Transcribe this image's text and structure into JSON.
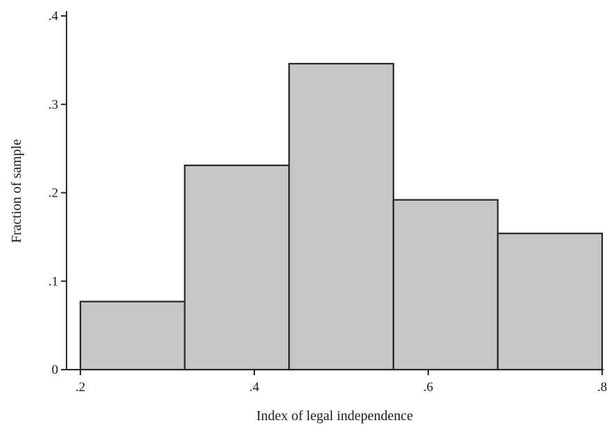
{
  "chart_data": {
    "type": "bar",
    "title": "",
    "xlabel": "Index of legal independence",
    "ylabel": "Fraction of sample",
    "bins": [
      {
        "start": 0.2,
        "end": 0.32,
        "value": 0.077
      },
      {
        "start": 0.32,
        "end": 0.44,
        "value": 0.231
      },
      {
        "start": 0.44,
        "end": 0.56,
        "value": 0.346
      },
      {
        "start": 0.56,
        "end": 0.68,
        "value": 0.192
      },
      {
        "start": 0.68,
        "end": 0.8,
        "value": 0.154
      }
    ],
    "xlim": [
      0.2,
      0.8
    ],
    "ylim": [
      0,
      0.4
    ],
    "xticks": [
      0.2,
      0.4,
      0.6,
      0.8
    ],
    "xtick_labels": [
      ".2",
      ".4",
      ".6",
      ".8"
    ],
    "yticks": [
      0,
      0.1,
      0.2,
      0.3,
      0.4
    ],
    "ytick_labels": [
      "0",
      ".1",
      ".2",
      ".3",
      ".4"
    ],
    "grid": false,
    "legend": "none"
  },
  "colors": {
    "bar_fill": "#c6c6c6",
    "bar_stroke": "#262626",
    "axis": "#262626",
    "text": "#1a1a1a"
  }
}
